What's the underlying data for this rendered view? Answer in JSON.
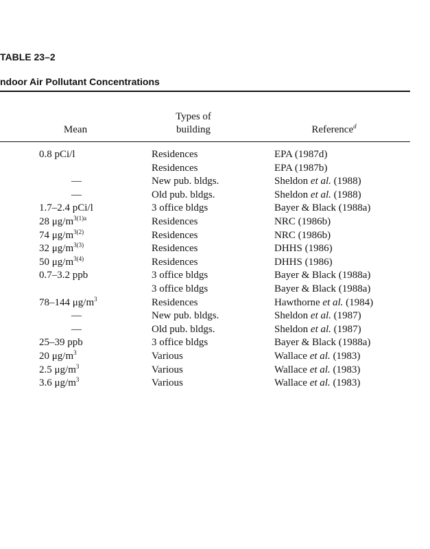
{
  "header": {
    "label": "TABLE 23–2",
    "title": "ndoor Air Pollutant Concentrations"
  },
  "table": {
    "columns": {
      "mean": "Mean",
      "type_line1": "Types of",
      "type_line2": "building",
      "reference": {
        "text": "Reference",
        "sup": "d"
      }
    },
    "rows": [
      {
        "mean": {
          "text": "0.8 pCi/l"
        },
        "type": "Residences",
        "reference": {
          "pre": "EPA (1987d)"
        }
      },
      {
        "mean": null,
        "type": "Residences",
        "reference": {
          "pre": "EPA (1987b)"
        }
      },
      {
        "mean": {
          "text": "—"
        },
        "type": "New pub. bldgs.",
        "reference": {
          "pre": "Sheldon ",
          "it": "et al.",
          "post": " (1988)"
        }
      },
      {
        "mean": {
          "text": "—"
        },
        "type": "Old pub. bldgs.",
        "reference": {
          "pre": "Sheldon ",
          "it": "et al.",
          "post": " (1988)"
        }
      },
      {
        "mean": {
          "text": "1.7–2.4 pCi/l"
        },
        "type": "3 office bldgs",
        "reference": {
          "pre": "Bayer & Black (1988a)"
        }
      },
      {
        "mean": {
          "text": "28 μg/m",
          "sup": "3(1)a"
        },
        "type": "Residences",
        "reference": {
          "pre": "NRC (1986b)"
        }
      },
      {
        "mean": {
          "text": "74 μg/m",
          "sup": "3(2)"
        },
        "type": "Residences",
        "reference": {
          "pre": "NRC (1986b)"
        }
      },
      {
        "mean": {
          "text": "32 μg/m",
          "sup": "3(3)"
        },
        "type": "Residences",
        "reference": {
          "pre": "DHHS (1986)"
        }
      },
      {
        "mean": {
          "text": "50 μg/m",
          "sup": "3(4)"
        },
        "type": "Residences",
        "reference": {
          "pre": "DHHS (1986)"
        }
      },
      {
        "mean": {
          "text": "0.7–3.2 ppb"
        },
        "type": "3 office bldgs",
        "reference": {
          "pre": "Bayer & Black (1988a)"
        }
      },
      {
        "mean": null,
        "type": "3 office bldgs",
        "reference": {
          "pre": "Bayer & Black (1988a)"
        }
      },
      {
        "mean": {
          "text": "78–144 μg/m",
          "sup": "3"
        },
        "type": "Residences",
        "reference": {
          "pre": "Hawthorne ",
          "it": "et al.",
          "post": " (1984)"
        }
      },
      {
        "mean": {
          "text": "—"
        },
        "type": "New pub. bldgs.",
        "reference": {
          "pre": "Sheldon ",
          "it": "et al.",
          "post": " (1987)"
        }
      },
      {
        "mean": {
          "text": "—"
        },
        "type": "Old pub. bldgs.",
        "reference": {
          "pre": "Sheldon ",
          "it": "et al.",
          "post": " (1987)"
        }
      },
      {
        "mean": {
          "text": "25–39 ppb"
        },
        "type": "3 office bldgs",
        "reference": {
          "pre": "Bayer & Black (1988a)"
        }
      },
      {
        "mean": {
          "text": "20 μg/m",
          "sup": "3"
        },
        "type": "Various",
        "reference": {
          "pre": "Wallace ",
          "it": "et al.",
          "post": " (1983)"
        }
      },
      {
        "mean": {
          "text": "2.5 μg/m",
          "sup": "3"
        },
        "type": "Various",
        "reference": {
          "pre": "Wallace ",
          "it": "et al.",
          "post": " (1983)"
        }
      },
      {
        "mean": {
          "text": "3.6 μg/m",
          "sup": "3"
        },
        "type": "Various",
        "reference": {
          "pre": "Wallace ",
          "it": "et al.",
          "post": " (1983)"
        }
      }
    ]
  }
}
